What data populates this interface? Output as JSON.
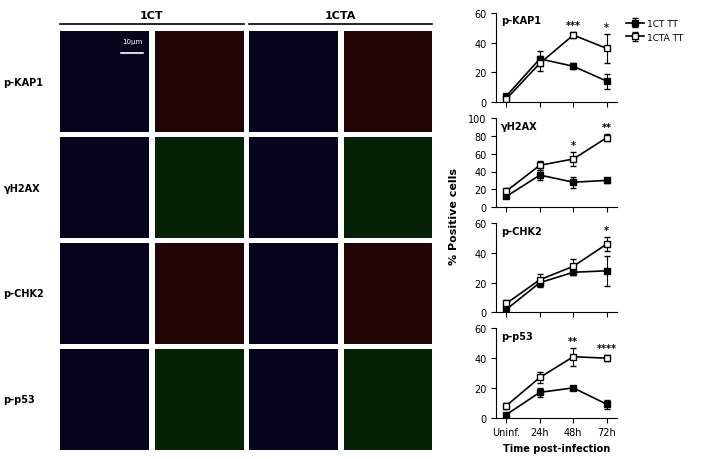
{
  "image_panel": {
    "columns": [
      "1CT",
      "1CTA"
    ],
    "rows": [
      "p-KAP1",
      "γH2AX",
      "p-CHK2",
      "p-p53"
    ],
    "scale_bar": "10µm"
  },
  "y_label": "% Positive cells",
  "chart_data": [
    {
      "type": "line",
      "title": "p-KAP1",
      "categories": [
        "Uninf.",
        "24h",
        "48h",
        "72h"
      ],
      "series": [
        {
          "name": "1CT TT",
          "color": "#000000",
          "marker": "square",
          "values": [
            4,
            29,
            24,
            14
          ],
          "errors": [
            1,
            5,
            2,
            5
          ]
        },
        {
          "name": "1CTA TT",
          "color": "#ffffff",
          "marker": "square",
          "values": [
            2,
            26,
            45,
            36
          ],
          "errors": [
            1,
            5,
            2,
            10
          ]
        }
      ],
      "ylim": [
        0,
        60
      ],
      "yticks": [
        0,
        20,
        40,
        60
      ],
      "annotations": [
        {
          "category": "48h",
          "text": "***"
        },
        {
          "category": "72h",
          "text": "*"
        }
      ],
      "legend": "upper right",
      "tick_labels": "y"
    },
    {
      "type": "line",
      "title": "γH2AX",
      "categories": [
        "Uninf.",
        "24h",
        "48h",
        "72h"
      ],
      "series": [
        {
          "name": "1CT TT",
          "color": "#000000",
          "marker": "square",
          "values": [
            12,
            36,
            28,
            30
          ],
          "errors": [
            2,
            6,
            6,
            3
          ]
        },
        {
          "name": "1CTA TT",
          "color": "#ffffff",
          "marker": "square",
          "values": [
            18,
            47,
            54,
            78
          ],
          "errors": [
            3,
            5,
            8,
            4
          ]
        }
      ],
      "ylim": [
        0,
        100
      ],
      "yticks": [
        0,
        20,
        40,
        60,
        80,
        100
      ],
      "annotations": [
        {
          "category": "48h",
          "text": "*"
        },
        {
          "category": "72h",
          "text": "**"
        }
      ],
      "tick_labels": "y"
    },
    {
      "type": "line",
      "title": "p-CHK2",
      "categories": [
        "Uninf.",
        "24h",
        "48h",
        "72h"
      ],
      "series": [
        {
          "name": "1CT TT",
          "color": "#000000",
          "marker": "square",
          "values": [
            2,
            20,
            27,
            28
          ],
          "errors": [
            1,
            3,
            2,
            10
          ]
        },
        {
          "name": "1CTA TT",
          "color": "#ffffff",
          "marker": "square",
          "values": [
            6,
            22,
            31,
            46
          ],
          "errors": [
            2,
            4,
            5,
            5
          ]
        }
      ],
      "ylim": [
        0,
        60
      ],
      "yticks": [
        0,
        20,
        40,
        60
      ],
      "annotations": [
        {
          "category": "72h",
          "text": "*"
        }
      ],
      "tick_labels": "y"
    },
    {
      "type": "line",
      "title": "p-p53",
      "categories": [
        "Uninf.",
        "24h",
        "48h",
        "72h"
      ],
      "series": [
        {
          "name": "1CT TT",
          "color": "#000000",
          "marker": "square",
          "values": [
            2,
            17,
            20,
            9
          ],
          "errors": [
            1,
            3,
            1,
            3
          ]
        },
        {
          "name": "1CTA TT",
          "color": "#ffffff",
          "marker": "square",
          "values": [
            8,
            27,
            41,
            40
          ],
          "errors": [
            2,
            4,
            6,
            2
          ]
        }
      ],
      "ylim": [
        0,
        60
      ],
      "yticks": [
        0,
        20,
        40,
        60
      ],
      "annotations": [
        {
          "category": "48h",
          "text": "**"
        },
        {
          "category": "72h",
          "text": "****"
        }
      ],
      "x_label": "Time post-infection"
    }
  ]
}
